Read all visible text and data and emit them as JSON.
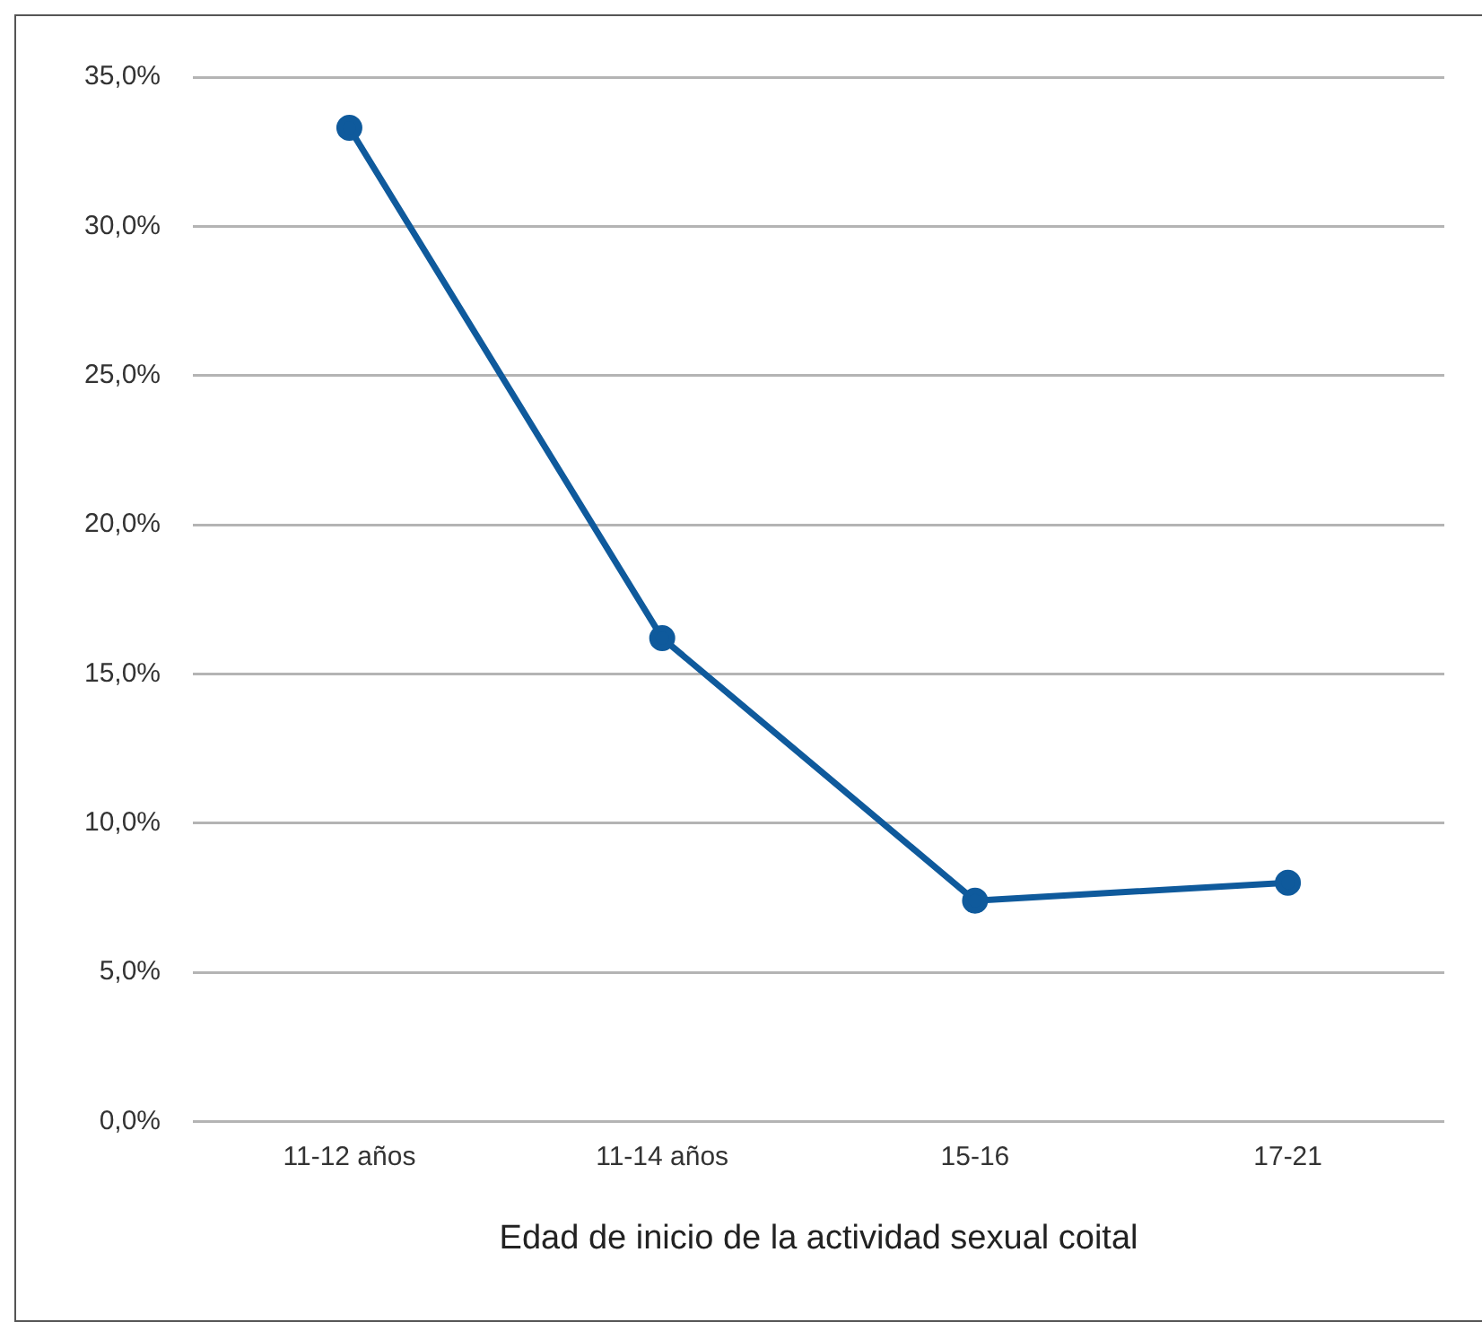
{
  "chart_data": {
    "type": "line",
    "xlabel": "Edad de inicio de la actividad sexual coital",
    "categories": [
      "11-12 años",
      "11-14 años",
      "15-16",
      "17-21"
    ],
    "series": [
      {
        "color": "#0f5a9c",
        "values": [
          33.3,
          16.2,
          7.4,
          8.0
        ]
      }
    ],
    "ylim": [
      0,
      35
    ],
    "yticks": [
      {
        "value": 0,
        "label": "0,0%"
      },
      {
        "value": 5,
        "label": "5,0%"
      },
      {
        "value": 10,
        "label": "10,0%"
      },
      {
        "value": 15,
        "label": "15,0%"
      },
      {
        "value": 20,
        "label": "20,0%"
      },
      {
        "value": 25,
        "label": "25,0%"
      },
      {
        "value": 30,
        "label": "30,0%"
      },
      {
        "value": 35,
        "label": "35,0%"
      }
    ],
    "grid": "y",
    "legend": false,
    "marker": "circle",
    "line_style": "solid"
  }
}
